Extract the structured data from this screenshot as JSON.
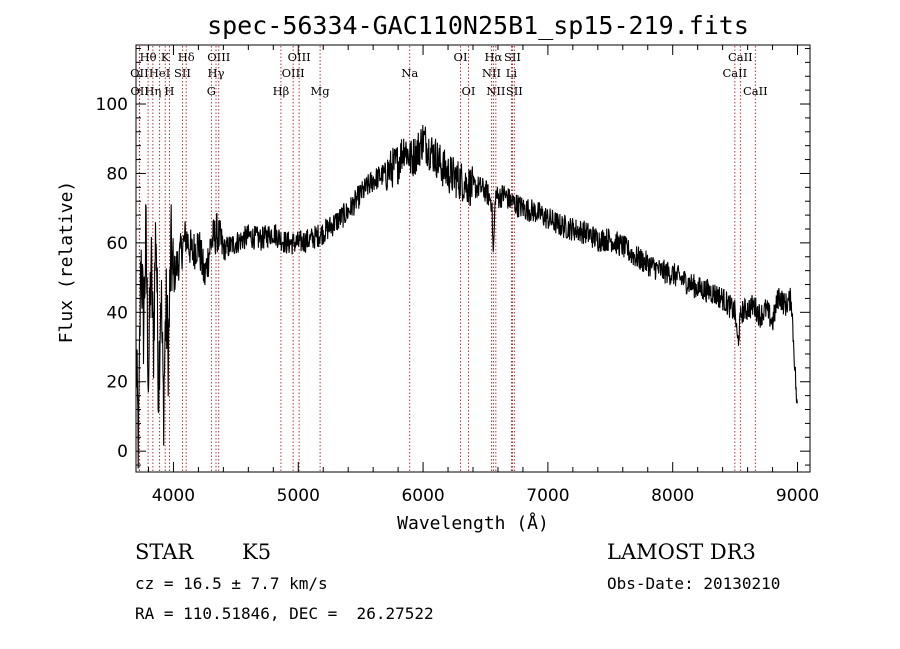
{
  "chart_data": {
    "type": "line",
    "title": "spec-56334-GAC110N25B1_sp15-219.fits",
    "xlabel": "Wavelength (Å)",
    "ylabel": "Flux (relative)",
    "xlim": [
      3700,
      9100
    ],
    "ylim": [
      -6,
      117
    ],
    "xticks": [
      4000,
      5000,
      6000,
      7000,
      8000,
      9000
    ],
    "yticks": [
      0,
      20,
      40,
      60,
      80,
      100
    ],
    "grid": false,
    "series": [
      {
        "name": "flux",
        "x": [
          3700,
          3720,
          3740,
          3760,
          3780,
          3800,
          3820,
          3840,
          3860,
          3880,
          3900,
          3920,
          3940,
          3960,
          3980,
          4000,
          4050,
          4100,
          4150,
          4200,
          4250,
          4300,
          4350,
          4400,
          4500,
          4600,
          4700,
          4800,
          4900,
          5000,
          5100,
          5200,
          5300,
          5400,
          5500,
          5600,
          5700,
          5800,
          5850,
          5900,
          5950,
          6000,
          6050,
          6100,
          6150,
          6200,
          6250,
          6300,
          6350,
          6400,
          6450,
          6500,
          6550,
          6563,
          6580,
          6600,
          6650,
          6700,
          6750,
          6800,
          6900,
          7000,
          7100,
          7200,
          7300,
          7400,
          7500,
          7600,
          7700,
          7800,
          7900,
          8000,
          8100,
          8200,
          8300,
          8400,
          8450,
          8500,
          8520,
          8550,
          8600,
          8650,
          8700,
          8750,
          8800,
          8850,
          8900,
          8950,
          9000
        ],
        "values": [
          28,
          0,
          58,
          36,
          62,
          20,
          55,
          30,
          68,
          18,
          48,
          12,
          42,
          28,
          58,
          50,
          56,
          62,
          57,
          60,
          50,
          60,
          63,
          58,
          60,
          62,
          61,
          63,
          60,
          60,
          61,
          63,
          66,
          69,
          74,
          78,
          80,
          83,
          88,
          84,
          86,
          90,
          87,
          85,
          82,
          80,
          79,
          78,
          77,
          76,
          76,
          75,
          72,
          56,
          74,
          73,
          74,
          72,
          71,
          70,
          69,
          67,
          65,
          64,
          63,
          61,
          61,
          59,
          56,
          54,
          52,
          51,
          49,
          47,
          46,
          44,
          42,
          40,
          31,
          40,
          41,
          42,
          39,
          41,
          37,
          45,
          42,
          44,
          10
        ]
      }
    ],
    "line_colors": {
      "spectrum": "#000000",
      "lines": "#b22222"
    },
    "lines": [
      {
        "label": "Hθ",
        "wl": 3797,
        "row": 1
      },
      {
        "label": "OII",
        "wl": 3727,
        "row": 2
      },
      {
        "label": "OII",
        "wl": 3729,
        "row": 3
      },
      {
        "label": "Hη",
        "wl": 3835,
        "row": 3
      },
      {
        "label": "HeI",
        "wl": 3889,
        "row": 2
      },
      {
        "label": "K",
        "wl": 3934,
        "row": 1
      },
      {
        "label": "H",
        "wl": 3968,
        "row": 3
      },
      {
        "label": "SII",
        "wl": 4072,
        "row": 2
      },
      {
        "label": "Hδ",
        "wl": 4102,
        "row": 1
      },
      {
        "label": "G",
        "wl": 4304,
        "row": 3
      },
      {
        "label": "Hγ",
        "wl": 4341,
        "row": 2
      },
      {
        "label": "OIII",
        "wl": 4363,
        "row": 1
      },
      {
        "label": "Hβ",
        "wl": 4861,
        "row": 3
      },
      {
        "label": "OIII",
        "wl": 4959,
        "row": 2
      },
      {
        "label": "OIII",
        "wl": 5007,
        "row": 1
      },
      {
        "label": "Mg",
        "wl": 5175,
        "row": 3
      },
      {
        "label": "Na",
        "wl": 5893,
        "row": 2
      },
      {
        "label": "OI",
        "wl": 6300,
        "row": 1
      },
      {
        "label": "OI",
        "wl": 6364,
        "row": 3
      },
      {
        "label": "NII",
        "wl": 6548,
        "row": 2
      },
      {
        "label": "Hα",
        "wl": 6563,
        "row": 1
      },
      {
        "label": "NII",
        "wl": 6583,
        "row": 3
      },
      {
        "label": "Li",
        "wl": 6708,
        "row": 2
      },
      {
        "label": "SII",
        "wl": 6716,
        "row": 1
      },
      {
        "label": "SII",
        "wl": 6731,
        "row": 3
      },
      {
        "label": "CaII",
        "wl": 8498,
        "row": 2
      },
      {
        "label": "CaII",
        "wl": 8542,
        "row": 1
      },
      {
        "label": "CaII",
        "wl": 8662,
        "row": 3
      }
    ]
  },
  "info": {
    "object_class": "STAR",
    "subclass": "K5",
    "survey": "LAMOST DR3",
    "redshift": "cz = 16.5 ± 7.7 km/s",
    "obs_date": "Obs-Date: 20130210",
    "coords": "RA = 110.51846, DEC =  26.27522"
  }
}
